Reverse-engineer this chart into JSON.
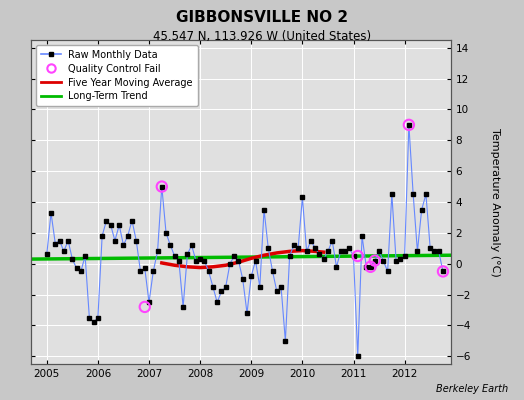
{
  "title": "GIBBONSVILLE NO 2",
  "subtitle": "45.547 N, 113.926 W (United States)",
  "ylabel": "Temperature Anomaly (°C)",
  "attribution": "Berkeley Earth",
  "ylim": [
    -6.5,
    14.5
  ],
  "xlim": [
    2004.7,
    2012.9
  ],
  "yticks": [
    -6,
    -4,
    -2,
    0,
    2,
    4,
    6,
    8,
    10,
    12,
    14
  ],
  "xticks": [
    2005,
    2006,
    2007,
    2008,
    2009,
    2010,
    2011,
    2012
  ],
  "background_color": "#e0e0e0",
  "fig_background": "#c8c8c8",
  "raw_color": "#6688ff",
  "raw_marker_color": "#000000",
  "moving_avg_color": "#dd0000",
  "trend_color": "#00bb00",
  "qc_fail_color": "#ff44ff",
  "raw_x": [
    2005.0,
    2005.083,
    2005.167,
    2005.25,
    2005.333,
    2005.417,
    2005.5,
    2005.583,
    2005.667,
    2005.75,
    2005.833,
    2005.917,
    2006.0,
    2006.083,
    2006.167,
    2006.25,
    2006.333,
    2006.417,
    2006.5,
    2006.583,
    2006.667,
    2006.75,
    2006.833,
    2006.917,
    2007.0,
    2007.083,
    2007.167,
    2007.25,
    2007.333,
    2007.417,
    2007.5,
    2007.583,
    2007.667,
    2007.75,
    2007.833,
    2007.917,
    2008.0,
    2008.083,
    2008.167,
    2008.25,
    2008.333,
    2008.417,
    2008.5,
    2008.583,
    2008.667,
    2008.75,
    2008.833,
    2008.917,
    2009.0,
    2009.083,
    2009.167,
    2009.25,
    2009.333,
    2009.417,
    2009.5,
    2009.583,
    2009.667,
    2009.75,
    2009.833,
    2009.917,
    2010.0,
    2010.083,
    2010.167,
    2010.25,
    2010.333,
    2010.417,
    2010.5,
    2010.583,
    2010.667,
    2010.75,
    2010.833,
    2010.917,
    2011.0,
    2011.083,
    2011.167,
    2011.25,
    2011.333,
    2011.417,
    2011.5,
    2011.583,
    2011.667,
    2011.75,
    2011.833,
    2011.917,
    2012.0,
    2012.083,
    2012.167,
    2012.25,
    2012.333,
    2012.417,
    2012.5,
    2012.583,
    2012.667,
    2012.75
  ],
  "raw_y": [
    0.6,
    3.3,
    1.3,
    1.5,
    0.8,
    1.5,
    0.3,
    -0.3,
    -0.5,
    0.5,
    -3.5,
    -3.8,
    -3.5,
    1.8,
    2.8,
    2.5,
    1.5,
    2.5,
    1.2,
    1.8,
    2.8,
    1.5,
    -0.5,
    -0.3,
    -2.5,
    -0.5,
    0.8,
    5.0,
    2.0,
    1.2,
    0.5,
    0.2,
    -2.8,
    0.6,
    1.2,
    0.2,
    0.3,
    0.2,
    -0.5,
    -1.5,
    -2.5,
    -1.8,
    -1.5,
    0.0,
    0.5,
    0.2,
    -1.0,
    -3.2,
    -0.8,
    0.2,
    -1.5,
    3.5,
    1.0,
    -0.5,
    -1.8,
    -1.5,
    -5.0,
    0.5,
    1.2,
    1.0,
    4.3,
    0.8,
    1.5,
    1.0,
    0.6,
    0.3,
    0.8,
    1.5,
    -0.2,
    0.8,
    0.8,
    1.0,
    0.5,
    -6.0,
    1.8,
    -0.2,
    -0.2,
    0.2,
    0.8,
    0.2,
    -0.5,
    4.5,
    0.2,
    0.3,
    0.5,
    9.0,
    4.5,
    0.8,
    3.5,
    4.5,
    1.0,
    0.8,
    0.8,
    -0.5
  ],
  "qc_fail_x": [
    2007.25,
    2006.917,
    2011.083,
    2011.333,
    2011.417,
    2012.083,
    2012.75
  ],
  "qc_fail_y": [
    5.0,
    -2.8,
    0.5,
    -0.2,
    0.2,
    9.0,
    -0.5
  ],
  "moving_avg_x": [
    2007.25,
    2007.5,
    2007.75,
    2008.0,
    2008.25,
    2008.5,
    2008.75,
    2009.0,
    2009.25,
    2009.5,
    2009.75,
    2010.0,
    2010.25,
    2010.417
  ],
  "moving_avg_y": [
    0.05,
    -0.1,
    -0.2,
    -0.25,
    -0.2,
    -0.1,
    0.1,
    0.35,
    0.55,
    0.7,
    0.8,
    0.85,
    0.8,
    0.75
  ],
  "trend_x": [
    2004.7,
    2012.9
  ],
  "trend_y": [
    0.3,
    0.55
  ]
}
